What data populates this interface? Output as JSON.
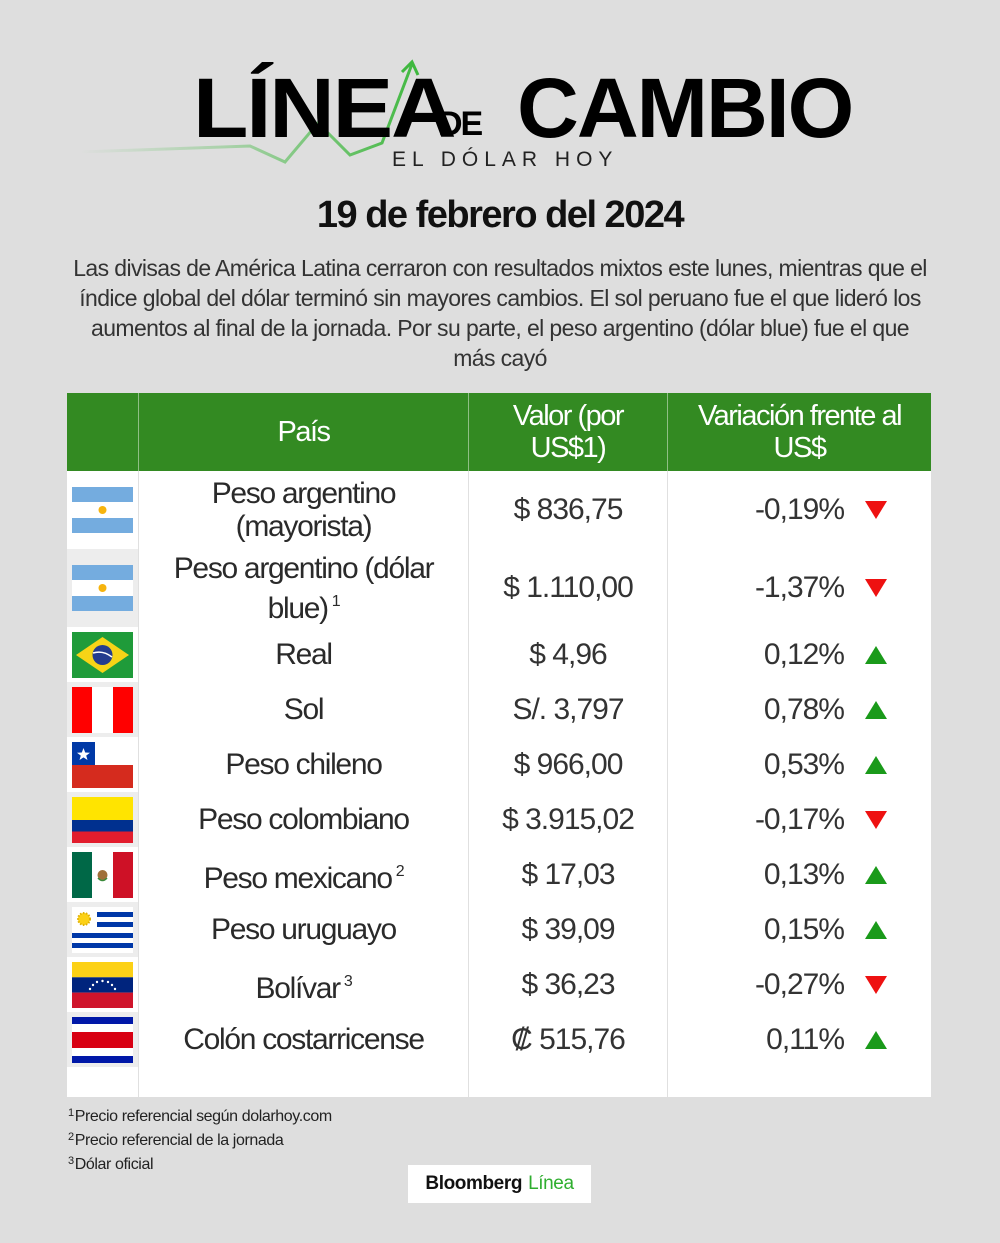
{
  "header": {
    "logo_word1": "LÍNEA",
    "logo_word2": "DE",
    "logo_word3": "CAMBIO",
    "logo_subtitle": "EL DÓLAR HOY",
    "logo_icon": "trend-line-arrow-icon",
    "accent_color": "#3fb83f"
  },
  "date": "19 de febrero del 2024",
  "intro": "Las divisas de América Latina cerraron con resultados mixtos este lunes, mientras que el índice global del dólar terminó sin mayores cambios. El sol peruano fue el que lideró los aumentos al final de la jornada. Por su parte, el peso argentino (dólar blue) fue el que más cayó",
  "table": {
    "header_color": "#338a22",
    "columns": {
      "flag": "",
      "country": "País",
      "value": "Valor (por US$1)",
      "variation": "Variación frente al US$"
    },
    "rows": [
      {
        "flag": "argentina",
        "name": "Peso argentino (mayorista)",
        "footnote": "",
        "value": "$ 836,75",
        "variation": "-0,19%",
        "direction": "down"
      },
      {
        "flag": "argentina",
        "name": "Peso argentino (dólar blue)",
        "footnote": "1",
        "value": "$ 1.110,00",
        "variation": "-1,37%",
        "direction": "down"
      },
      {
        "flag": "brazil",
        "name": "Real",
        "footnote": "",
        "value": "$ 4,96",
        "variation": "0,12%",
        "direction": "up"
      },
      {
        "flag": "peru",
        "name": "Sol",
        "footnote": "",
        "value": "S/. 3,797",
        "variation": "0,78%",
        "direction": "up"
      },
      {
        "flag": "chile",
        "name": "Peso chileno",
        "footnote": "",
        "value": "$ 966,00",
        "variation": "0,53%",
        "direction": "up"
      },
      {
        "flag": "colombia",
        "name": "Peso colombiano",
        "footnote": "",
        "value": "$ 3.915,02",
        "variation": "-0,17%",
        "direction": "down"
      },
      {
        "flag": "mexico",
        "name": "Peso mexicano",
        "footnote": "2",
        "value": "$ 17,03",
        "variation": "0,13%",
        "direction": "up"
      },
      {
        "flag": "uruguay",
        "name": "Peso uruguayo",
        "footnote": "",
        "value": "$ 39,09",
        "variation": "0,15%",
        "direction": "up"
      },
      {
        "flag": "venezuela",
        "name": "Bolívar",
        "footnote": "3",
        "value": "$ 36,23",
        "variation": "-0,27%",
        "direction": "down"
      },
      {
        "flag": "costa-rica",
        "name": "Colón costarricense",
        "footnote": "",
        "value": "₡ 515,76",
        "variation": "0,11%",
        "direction": "up"
      }
    ],
    "up_color": "#1a9a1a",
    "down_color": "#ee1111"
  },
  "footnotes": [
    {
      "mark": "1",
      "text": "Precio referencial según dolarhoy.com"
    },
    {
      "mark": "2",
      "text": "Precio referencial de la jornada"
    },
    {
      "mark": "3",
      "text": "Dólar oficial"
    }
  ],
  "brand": {
    "part1": "Bloomberg",
    "part2": "Línea"
  }
}
